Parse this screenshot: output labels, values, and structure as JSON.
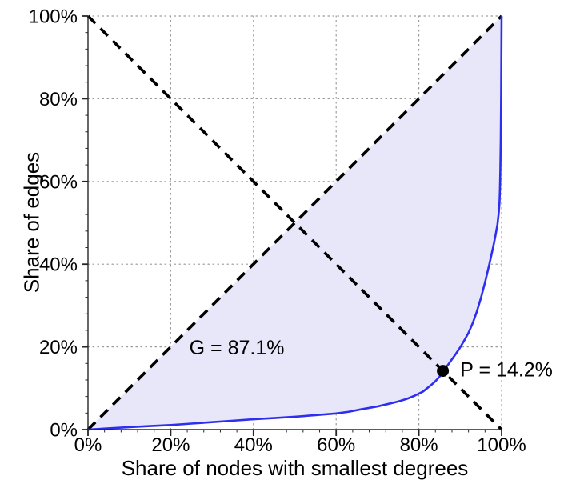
{
  "chart_data": {
    "type": "area",
    "title": "",
    "xlabel": "Share of nodes with smallest degrees",
    "ylabel": "Share of edges",
    "xlim": [
      0,
      100
    ],
    "ylim": [
      0,
      100
    ],
    "grid": true,
    "legend": "none",
    "tick_values": [
      0,
      20,
      40,
      60,
      80,
      100
    ],
    "tick_labels": [
      "0%",
      "20%",
      "40%",
      "60%",
      "80%",
      "100%"
    ],
    "minor_tick_step": 4,
    "lorenz": {
      "name": "lorenz-curve",
      "points": [
        [
          0,
          0
        ],
        [
          5,
          0.3
        ],
        [
          10,
          0.6
        ],
        [
          15,
          0.85
        ],
        [
          20,
          1.1
        ],
        [
          25,
          1.45
        ],
        [
          30,
          1.8
        ],
        [
          35,
          2.15
        ],
        [
          40,
          2.5
        ],
        [
          45,
          2.8
        ],
        [
          50,
          3.1
        ],
        [
          55,
          3.5
        ],
        [
          60,
          3.9
        ],
        [
          63,
          4.3
        ],
        [
          66,
          4.9
        ],
        [
          70,
          5.6
        ],
        [
          73,
          6.3
        ],
        [
          75,
          6.8
        ],
        [
          77,
          7.4
        ],
        [
          79,
          8.2
        ],
        [
          80,
          8.7
        ],
        [
          81,
          9.2
        ],
        [
          82,
          10.0
        ],
        [
          83,
          10.8
        ],
        [
          84,
          11.7
        ],
        [
          85,
          12.8
        ],
        [
          85.8,
          14.2
        ],
        [
          86.5,
          15.0
        ],
        [
          87,
          15.6
        ],
        [
          88,
          17.0
        ],
        [
          89,
          18.4
        ],
        [
          90,
          19.9
        ],
        [
          91,
          21.6
        ],
        [
          92,
          23.4
        ],
        [
          93,
          25.7
        ],
        [
          94,
          28.5
        ],
        [
          95,
          31.8
        ],
        [
          96,
          35.6
        ],
        [
          97,
          39.8
        ],
        [
          98,
          44.3
        ],
        [
          98.5,
          46.8
        ],
        [
          99,
          49.6
        ],
        [
          99.3,
          52.3
        ],
        [
          99.5,
          55.0
        ],
        [
          99.6,
          58.0
        ],
        [
          99.7,
          63.0
        ],
        [
          99.8,
          70.0
        ],
        [
          99.9,
          82.0
        ],
        [
          100,
          100
        ]
      ]
    },
    "reference_lines": [
      {
        "name": "equality-diagonal",
        "from": [
          0,
          0
        ],
        "to": [
          100,
          100
        ],
        "style": "dashed"
      },
      {
        "name": "anti-diagonal",
        "from": [
          0,
          100
        ],
        "to": [
          100,
          0
        ],
        "style": "dashed"
      }
    ],
    "gini": {
      "label": "G = 87.1%",
      "value": 87.1,
      "label_pos": [
        24.5,
        18.2
      ]
    },
    "p_point": {
      "label": "P = 14.2%",
      "value": 14.2,
      "x": 85.8,
      "y": 14.2,
      "label_pos": [
        90.0,
        12.9
      ]
    },
    "colors": {
      "curve": "#2e2ef0",
      "fill": "#e8e7f9",
      "dashed_line": "#000000",
      "grid": "#9a9a9a",
      "axis": "#262626",
      "marker": "#000000",
      "text": "#000000"
    }
  }
}
